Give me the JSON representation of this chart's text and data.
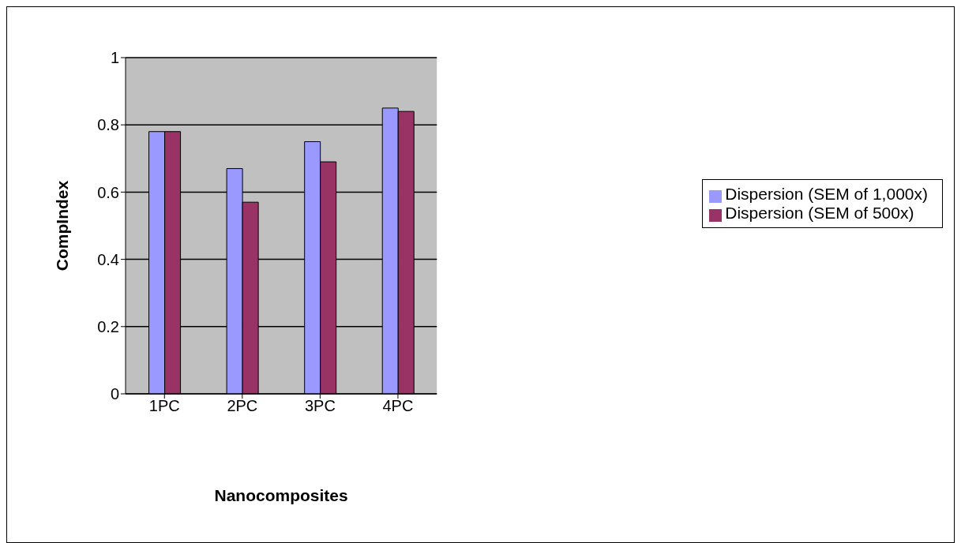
{
  "chart_data": {
    "type": "bar",
    "xlabel": "Nanocomposites",
    "ylabel": "CompIndex",
    "categories": [
      "1PC",
      "2PC",
      "3PC",
      "4PC"
    ],
    "series": [
      {
        "name": "Dispersion (SEM of 1,000x)",
        "color": "#9999ff",
        "values": [
          0.78,
          0.67,
          0.75,
          0.85
        ]
      },
      {
        "name": "Dispersion (SEM of 500x)",
        "color": "#993366",
        "values": [
          0.78,
          0.57,
          0.69,
          0.84
        ]
      }
    ],
    "ylim": [
      0,
      1
    ],
    "yticks": [
      0,
      0.2,
      0.4,
      0.6,
      0.8,
      1
    ],
    "grid": "y",
    "legend": "right"
  }
}
